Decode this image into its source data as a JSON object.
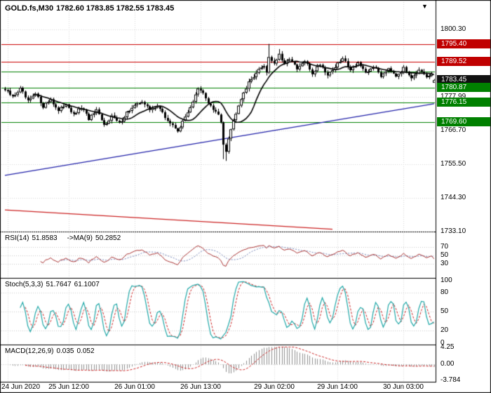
{
  "window": {
    "symbol_timeframe": "GOLD.fs,M30",
    "ohlc": "1782.60 1783.85 1782.55 1783.45",
    "shift_marker": "▼"
  },
  "indicators": {
    "rsi": {
      "label": "RSI(14)",
      "value": "51.8583",
      "ma_label": "->MA(9)",
      "ma_value": "50.2852"
    },
    "stoch": {
      "label": "Stoch(5,3,3)",
      "k_value": "51.7647",
      "d_value": "61.1007"
    },
    "macd": {
      "label": "MACD(12,26,9)",
      "macd_value": "0.035",
      "signal_value": "0.052"
    }
  },
  "colors": {
    "up_candle": "#ffffff",
    "down_candle": "#000000",
    "candle_border": "#000000",
    "ma": "#000000",
    "grid": "#d9d9d9",
    "level_grid": "#c8c8c8",
    "resistance": "#cc0000",
    "support": "#008000",
    "trend_up": "#2222aa",
    "trend_down": "#cc2222",
    "rsi": "#aa3333",
    "rsi_ma": "#7788bb",
    "stoch_k": "#20a8a8",
    "stoch_d": "#cc2222",
    "macd_hist": "#909090",
    "macd_signal": "#cc2222",
    "panel_border": "#000000",
    "badge_red": "#c00000",
    "badge_green": "#008000",
    "badge_black": "#111111"
  },
  "chart_data": [
    {
      "type": "candlestick",
      "title": "GOLD.fs M30",
      "bars": 170,
      "last_ohlc": {
        "open": 1782.6,
        "high": 1783.85,
        "low": 1782.55,
        "close": 1783.45
      },
      "ylim": [
        1733.1,
        1809.87
      ],
      "y_ticks": [
        {
          "text": "1800.30",
          "price": 1800.3
        },
        {
          "text": "1777.99",
          "price": 1777.99
        },
        {
          "text": "1766.70",
          "price": 1766.7
        },
        {
          "text": "1755.50",
          "price": 1755.5
        },
        {
          "text": "1744.30",
          "price": 1744.3
        },
        {
          "text": "1733.10",
          "price": 1733.1
        }
      ],
      "price_badges": [
        {
          "text": "1795.40",
          "price": 1795.4,
          "bg": "#c00000"
        },
        {
          "text": "1789.52",
          "price": 1789.52,
          "bg": "#c00000"
        },
        {
          "text": "1783.45",
          "price": 1783.45,
          "bg": "#111111"
        },
        {
          "text": "1780.87",
          "price": 1780.87,
          "bg": "#008000"
        },
        {
          "text": "1776.15",
          "price": 1776.15,
          "bg": "#008000"
        },
        {
          "text": "1769.60",
          "price": 1769.6,
          "bg": "#008000"
        }
      ],
      "levels": [
        {
          "price": 1795.4,
          "color": "#cc0000"
        },
        {
          "price": 1789.52,
          "color": "#cc0000"
        },
        {
          "price": 1786.2,
          "color": "#008000"
        },
        {
          "price": 1780.87,
          "color": "#008000"
        },
        {
          "price": 1776.15,
          "color": "#008000"
        },
        {
          "price": 1769.6,
          "color": "#008000"
        }
      ],
      "trendlines": [
        {
          "from_bar": 0,
          "from_price": 1751.8,
          "to_bar": 169,
          "to_price": 1775.6,
          "color": "#2222aa"
        },
        {
          "from_bar": 0,
          "from_price": 1740.3,
          "to_bar": 129,
          "to_price": 1733.9,
          "color": "#cc2222"
        }
      ],
      "close_waypoints": [
        [
          0,
          1780.2
        ],
        [
          3,
          1777.8
        ],
        [
          6,
          1780.6
        ],
        [
          9,
          1776.2
        ],
        [
          12,
          1778.8
        ],
        [
          15,
          1774.8
        ],
        [
          18,
          1777.2
        ],
        [
          21,
          1773.0
        ],
        [
          24,
          1775.8
        ],
        [
          27,
          1771.8
        ],
        [
          30,
          1774.4
        ],
        [
          33,
          1770.6
        ],
        [
          36,
          1773.2
        ],
        [
          39,
          1768.4
        ],
        [
          42,
          1771.6
        ],
        [
          45,
          1769.0
        ],
        [
          48,
          1772.8
        ],
        [
          51,
          1774.8
        ],
        [
          54,
          1776.6
        ],
        [
          57,
          1773.4
        ],
        [
          60,
          1775.2
        ],
        [
          63,
          1771.0
        ],
        [
          66,
          1768.2
        ],
        [
          68,
          1766.8
        ],
        [
          70,
          1769.4
        ],
        [
          72,
          1773.0
        ],
        [
          74,
          1776.4
        ],
        [
          76,
          1780.4
        ],
        [
          78,
          1779.0
        ],
        [
          80,
          1776.0
        ],
        [
          82,
          1773.6
        ],
        [
          84,
          1771.8
        ],
        [
          85,
          1769.5
        ],
        [
          86,
          1762.5
        ],
        [
          87,
          1760.0
        ],
        [
          88,
          1764.5
        ],
        [
          90,
          1770.0
        ],
        [
          92,
          1775.5
        ],
        [
          94,
          1779.5
        ],
        [
          96,
          1782.5
        ],
        [
          98,
          1785.0
        ],
        [
          100,
          1786.8
        ],
        [
          102,
          1788.5
        ],
        [
          103,
          1786.0
        ],
        [
          104,
          1791.3
        ],
        [
          106,
          1789.0
        ],
        [
          108,
          1791.8
        ],
        [
          110,
          1788.3
        ],
        [
          112,
          1790.9
        ],
        [
          115,
          1786.9
        ],
        [
          118,
          1789.8
        ],
        [
          121,
          1785.7
        ],
        [
          124,
          1788.9
        ],
        [
          127,
          1785.2
        ],
        [
          130,
          1787.9
        ],
        [
          133,
          1790.6
        ],
        [
          136,
          1787.1
        ],
        [
          139,
          1789.4
        ],
        [
          142,
          1785.4
        ],
        [
          145,
          1788.2
        ],
        [
          148,
          1784.9
        ],
        [
          151,
          1787.6
        ],
        [
          154,
          1785.1
        ],
        [
          157,
          1787.3
        ],
        [
          160,
          1784.6
        ],
        [
          163,
          1786.6
        ],
        [
          166,
          1784.2
        ],
        [
          168,
          1785.3
        ],
        [
          169,
          1783.45
        ]
      ],
      "wick_overrides": [
        {
          "bar": 86,
          "low": 1757.2
        },
        {
          "bar": 87,
          "low": 1756.6
        },
        {
          "bar": 88,
          "low": 1759.0
        },
        {
          "bar": 104,
          "high": 1795.5
        },
        {
          "bar": 108,
          "high": 1793.8
        }
      ],
      "x_ticks": [
        {
          "text": "24 Jun 2020",
          "bar": 1
        },
        {
          "text": "25 Jun 12:00",
          "bar": 25
        },
        {
          "text": "26 Jun 01:00",
          "bar": 51
        },
        {
          "text": "26 Jun 13:00",
          "bar": 77
        },
        {
          "text": "29 Jun 02:00",
          "bar": 106
        },
        {
          "text": "29 Jun 14:00",
          "bar": 131
        },
        {
          "text": "30 Jun 03:00",
          "bar": 157
        }
      ],
      "ma_period": 12
    },
    {
      "type": "line",
      "name": "RSI(14)",
      "current": 51.8583,
      "ma_current": 50.2852,
      "range": [
        0,
        100
      ],
      "period": 14,
      "ma_period": 9,
      "y_ticks": [
        {
          "text": "70",
          "v": 70
        },
        {
          "text": "50",
          "v": 50
        },
        {
          "text": "30",
          "v": 30
        }
      ]
    },
    {
      "type": "line",
      "name": "Stoch(5,3,3)",
      "current_k": 51.7647,
      "current_d": 61.1007,
      "range": [
        0,
        100
      ],
      "params": [
        5,
        3,
        3
      ],
      "y_ticks": [
        {
          "text": "100",
          "v": 100
        },
        {
          "text": "80",
          "v": 80
        },
        {
          "text": "50",
          "v": 50
        },
        {
          "text": "20",
          "v": 20
        },
        {
          "text": "0",
          "v": 0
        }
      ]
    },
    {
      "type": "bar",
      "name": "MACD(12,26,9)",
      "current_macd": 0.035,
      "current_signal": 0.052,
      "range": [
        -3.784,
        4.25
      ],
      "params": [
        12,
        26,
        9
      ],
      "y_ticks": [
        {
          "text": "4.25",
          "v": 4.25
        },
        {
          "text": "0.00",
          "v": 0
        },
        {
          "text": "-3.784",
          "v": -3.784
        }
      ]
    }
  ]
}
